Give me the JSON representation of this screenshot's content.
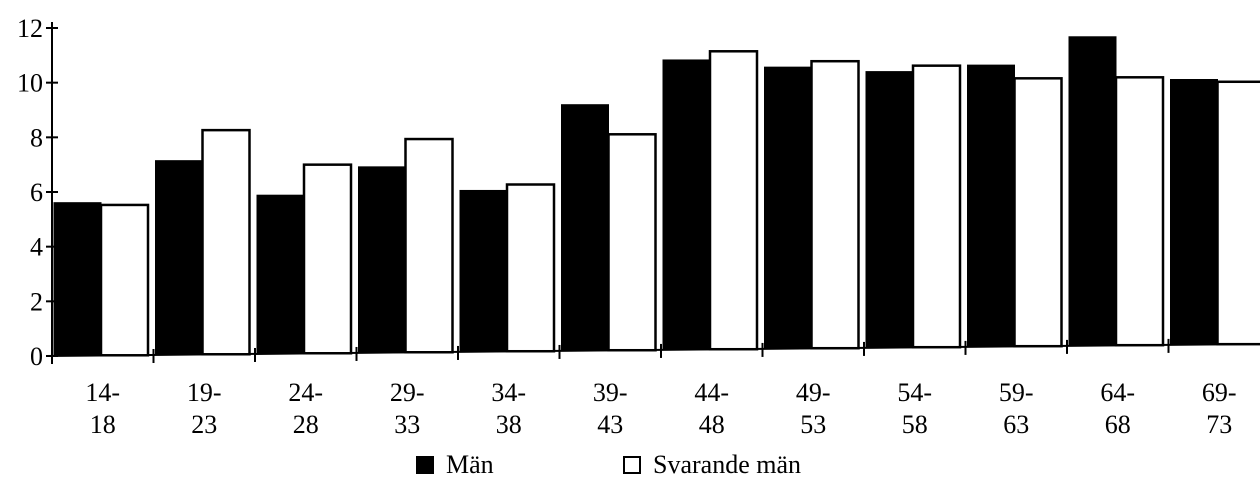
{
  "chart_data": {
    "type": "bar",
    "title": "",
    "xlabel": "",
    "ylabel": "",
    "ylim": [
      0,
      12
    ],
    "yticks": [
      "0",
      "2",
      "4",
      "6",
      "8",
      "10",
      "12"
    ],
    "categories": [
      [
        "14-",
        "18"
      ],
      [
        "19-",
        "23"
      ],
      [
        "24-",
        "28"
      ],
      [
        "29-",
        "33"
      ],
      [
        "34-",
        "38"
      ],
      [
        "39-",
        "43"
      ],
      [
        "44-",
        "48"
      ],
      [
        "49-",
        "53"
      ],
      [
        "54-",
        "58"
      ],
      [
        "59-",
        "63"
      ],
      [
        "64-",
        "68"
      ],
      [
        "69-",
        "73"
      ]
    ],
    "series": [
      {
        "name": "Män",
        "color": "#000000",
        "values": [
          5.6,
          7.1,
          5.8,
          6.8,
          5.9,
          9.0,
          10.6,
          10.3,
          10.1,
          10.3,
          11.3,
          9.7
        ]
      },
      {
        "name": "Svarande män",
        "color": "#ffffff",
        "values": [
          5.5,
          8.2,
          6.9,
          7.8,
          6.1,
          7.9,
          10.9,
          10.5,
          10.3,
          9.8,
          9.8,
          9.6
        ]
      }
    ],
    "grid": false,
    "legend_position": "bottom"
  }
}
